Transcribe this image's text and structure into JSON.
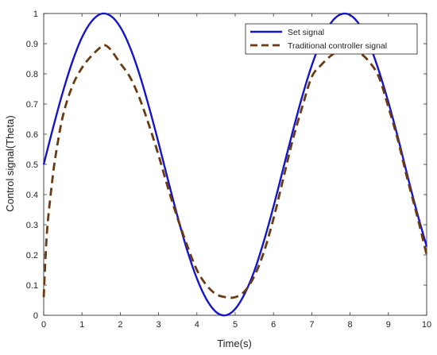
{
  "chart_data": {
    "type": "line",
    "title": "",
    "xlabel": "Time(s)",
    "ylabel": "Control signal(Theta)",
    "xlim": [
      0,
      10
    ],
    "ylim": [
      0,
      1
    ],
    "xticks": [
      0,
      1,
      2,
      3,
      4,
      5,
      6,
      7,
      8,
      9,
      10
    ],
    "yticks": [
      0,
      0.1,
      0.2,
      0.3,
      0.4,
      0.5,
      0.6,
      0.7,
      0.8,
      0.9,
      1
    ],
    "xtick_labels": [
      "0",
      "1",
      "2",
      "3",
      "4",
      "5",
      "6",
      "7",
      "8",
      "9",
      "10"
    ],
    "ytick_labels": [
      "0",
      "0.1",
      "0.2",
      "0.3",
      "0.4",
      "0.5",
      "0.6",
      "0.7",
      "0.8",
      "0.9",
      "1"
    ],
    "grid": false,
    "legend_position": "top-right",
    "series": [
      {
        "name": "Set signal",
        "color": "#1515c8",
        "style": "solid",
        "x": [
          0,
          0.25,
          0.5,
          0.75,
          1.0,
          1.25,
          1.5,
          1.75,
          2.0,
          2.25,
          2.5,
          2.75,
          3.0,
          3.25,
          3.5,
          3.75,
          4.0,
          4.25,
          4.5,
          4.75,
          5.0,
          5.25,
          5.5,
          5.75,
          6.0,
          6.25,
          6.5,
          6.75,
          7.0,
          7.25,
          7.5,
          7.75,
          8.0,
          8.25,
          8.5,
          8.75,
          9.0,
          9.25,
          9.5,
          9.75,
          10.0
        ],
        "y": [
          0.5,
          0.624,
          0.74,
          0.841,
          0.921,
          0.974,
          0.999,
          0.992,
          0.955,
          0.889,
          0.799,
          0.69,
          0.571,
          0.446,
          0.325,
          0.214,
          0.122,
          0.053,
          0.011,
          0.0,
          0.021,
          0.072,
          0.147,
          0.246,
          0.36,
          0.484,
          0.608,
          0.725,
          0.828,
          0.911,
          0.969,
          0.997,
          0.995,
          0.962,
          0.899,
          0.811,
          0.706,
          0.589,
          0.462,
          0.34,
          0.228
        ]
      },
      {
        "name": "Traditional controller signal",
        "color": "#6b3a12",
        "style": "dashed",
        "x": [
          0,
          0.05,
          0.1,
          0.2,
          0.3,
          0.5,
          0.75,
          1.0,
          1.25,
          1.5,
          1.6,
          1.75,
          2.0,
          2.25,
          2.5,
          2.75,
          3.0,
          3.25,
          3.5,
          3.75,
          4.0,
          4.25,
          4.5,
          4.75,
          5.0,
          5.25,
          5.5,
          5.75,
          6.0,
          6.25,
          6.5,
          6.75,
          7.0,
          7.25,
          7.5,
          7.75,
          8.0,
          8.25,
          8.5,
          8.75,
          9.0,
          9.25,
          9.5,
          9.75,
          10.0
        ],
        "y": [
          0.06,
          0.2,
          0.3,
          0.42,
          0.52,
          0.66,
          0.76,
          0.82,
          0.86,
          0.89,
          0.895,
          0.88,
          0.835,
          0.79,
          0.72,
          0.63,
          0.53,
          0.42,
          0.32,
          0.23,
          0.15,
          0.1,
          0.07,
          0.06,
          0.06,
          0.08,
          0.13,
          0.21,
          0.32,
          0.45,
          0.58,
          0.69,
          0.79,
          0.83,
          0.86,
          0.88,
          0.885,
          0.87,
          0.84,
          0.79,
          0.69,
          0.58,
          0.45,
          0.33,
          0.2
        ]
      }
    ]
  }
}
